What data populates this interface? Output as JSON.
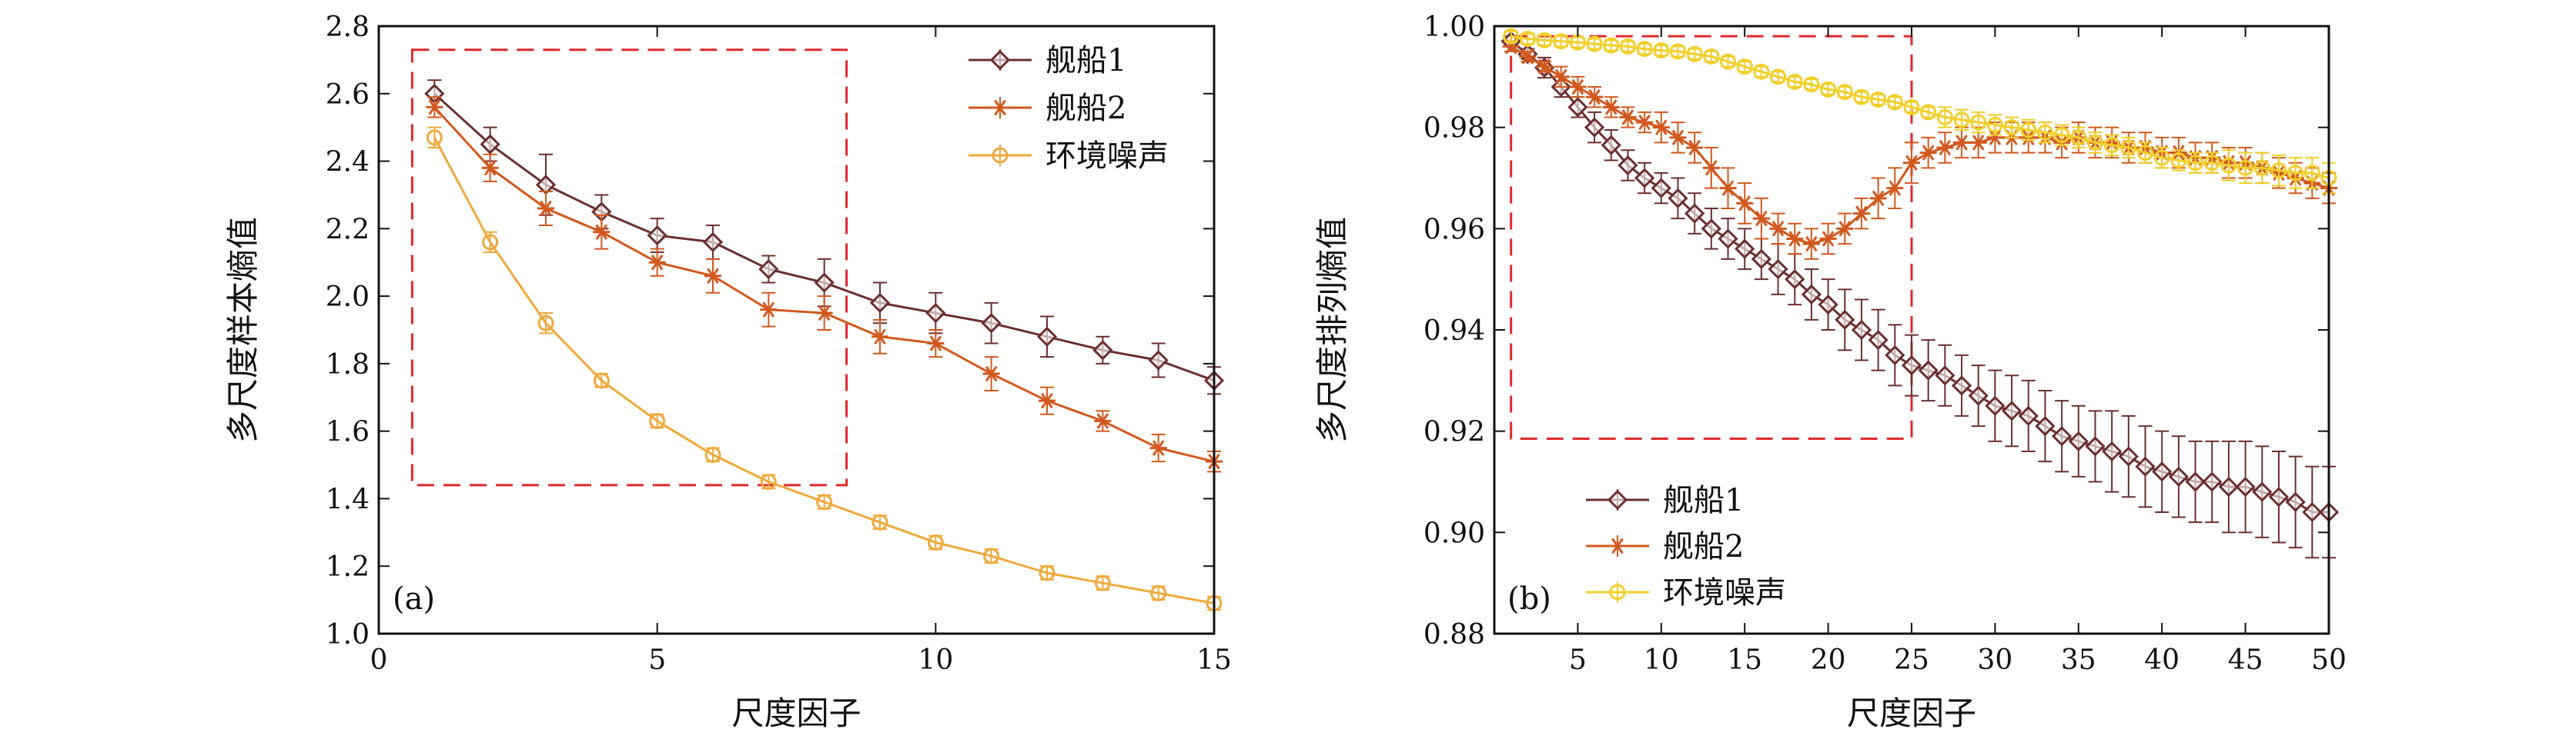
{
  "chart_data": [
    {
      "type": "line",
      "panel_label": "(a)",
      "xlabel": "尺度因子",
      "ylabel": "多尺度样本熵值",
      "xlim": [
        0,
        15
      ],
      "ylim": [
        1.0,
        2.8
      ],
      "xticks": [
        0,
        5,
        10,
        15
      ],
      "yticks": [
        1.0,
        1.2,
        1.4,
        1.6,
        1.8,
        2.0,
        2.2,
        2.4,
        2.6,
        2.8
      ],
      "x": [
        1,
        2,
        3,
        4,
        5,
        6,
        7,
        8,
        9,
        10,
        11,
        12,
        13,
        14,
        15
      ],
      "highlight_box": {
        "x": [
          0.6,
          8.4
        ],
        "y": [
          1.44,
          2.73
        ]
      },
      "legend_position": "top-right",
      "series": [
        {
          "name": "舰船1",
          "marker": "diamond",
          "color": "#6b2f2f",
          "values": [
            2.6,
            2.45,
            2.33,
            2.25,
            2.18,
            2.16,
            2.08,
            2.04,
            1.98,
            1.95,
            1.92,
            1.88,
            1.84,
            1.81,
            1.75
          ],
          "errors": [
            0.04,
            0.05,
            0.09,
            0.05,
            0.05,
            0.05,
            0.04,
            0.07,
            0.06,
            0.06,
            0.06,
            0.06,
            0.04,
            0.05,
            0.04
          ]
        },
        {
          "name": "舰船2",
          "marker": "star",
          "color": "#d2581e",
          "values": [
            2.56,
            2.38,
            2.26,
            2.19,
            2.1,
            2.06,
            1.96,
            1.95,
            1.88,
            1.86,
            1.77,
            1.69,
            1.63,
            1.55,
            1.51
          ],
          "errors": [
            0.03,
            0.04,
            0.05,
            0.05,
            0.04,
            0.05,
            0.05,
            0.05,
            0.05,
            0.04,
            0.05,
            0.04,
            0.03,
            0.04,
            0.03
          ]
        },
        {
          "name": "环境噪声",
          "marker": "circle",
          "color": "#f0a93a",
          "values": [
            2.47,
            2.16,
            1.92,
            1.75,
            1.63,
            1.53,
            1.45,
            1.39,
            1.33,
            1.27,
            1.23,
            1.18,
            1.15,
            1.12,
            1.09
          ],
          "errors": [
            0.03,
            0.03,
            0.03,
            0.02,
            0.02,
            0.02,
            0.02,
            0.02,
            0.02,
            0.02,
            0.02,
            0.02,
            0.02,
            0.02,
            0.02
          ]
        }
      ]
    },
    {
      "type": "line",
      "panel_label": "(b)",
      "xlabel": "尺度因子",
      "ylabel": "多尺度排列熵值",
      "xlim": [
        0,
        50
      ],
      "ylim": [
        0.88,
        1.0
      ],
      "xticks": [
        5,
        10,
        15,
        20,
        25,
        30,
        35,
        40,
        45,
        50
      ],
      "yticks": [
        0.88,
        0.9,
        0.92,
        0.94,
        0.96,
        0.98,
        1.0
      ],
      "x": [
        1,
        2,
        3,
        4,
        5,
        6,
        7,
        8,
        9,
        10,
        11,
        12,
        13,
        14,
        15,
        16,
        17,
        18,
        19,
        20,
        21,
        22,
        23,
        24,
        25,
        26,
        27,
        28,
        29,
        30,
        31,
        32,
        33,
        34,
        35,
        36,
        37,
        38,
        39,
        40,
        41,
        42,
        43,
        44,
        45,
        46,
        47,
        48,
        49,
        50
      ],
      "highlight_box": {
        "x": [
          1.0,
          25.0
        ],
        "y": [
          0.9185,
          0.998
        ]
      },
      "legend_position": "bottom-left",
      "series": [
        {
          "name": "舰船1",
          "marker": "diamond",
          "color": "#6b2f2f",
          "values": [
            0.997,
            0.9945,
            0.9918,
            0.988,
            0.984,
            0.98,
            0.9765,
            0.9725,
            0.97,
            0.968,
            0.966,
            0.963,
            0.96,
            0.958,
            0.956,
            0.954,
            0.952,
            0.95,
            0.947,
            0.945,
            0.942,
            0.94,
            0.938,
            0.935,
            0.933,
            0.932,
            0.931,
            0.929,
            0.927,
            0.925,
            0.924,
            0.923,
            0.921,
            0.919,
            0.918,
            0.917,
            0.916,
            0.915,
            0.913,
            0.912,
            0.911,
            0.91,
            0.91,
            0.909,
            0.909,
            0.908,
            0.907,
            0.906,
            0.904,
            0.904
          ],
          "errors": [
            0.001,
            0.001,
            0.002,
            0.002,
            0.002,
            0.003,
            0.003,
            0.003,
            0.003,
            0.003,
            0.004,
            0.004,
            0.004,
            0.004,
            0.004,
            0.004,
            0.005,
            0.005,
            0.005,
            0.005,
            0.006,
            0.006,
            0.006,
            0.006,
            0.006,
            0.006,
            0.006,
            0.006,
            0.006,
            0.007,
            0.007,
            0.007,
            0.007,
            0.007,
            0.007,
            0.007,
            0.008,
            0.008,
            0.008,
            0.008,
            0.008,
            0.008,
            0.008,
            0.009,
            0.009,
            0.009,
            0.009,
            0.009,
            0.009,
            0.009
          ]
        },
        {
          "name": "舰船2",
          "marker": "star",
          "color": "#d2581e",
          "values": [
            0.996,
            0.994,
            0.992,
            0.99,
            0.988,
            0.986,
            0.984,
            0.982,
            0.981,
            0.98,
            0.978,
            0.976,
            0.972,
            0.968,
            0.965,
            0.962,
            0.96,
            0.958,
            0.957,
            0.958,
            0.96,
            0.963,
            0.966,
            0.968,
            0.973,
            0.975,
            0.976,
            0.977,
            0.977,
            0.978,
            0.978,
            0.978,
            0.978,
            0.977,
            0.978,
            0.977,
            0.977,
            0.976,
            0.976,
            0.975,
            0.975,
            0.974,
            0.974,
            0.973,
            0.973,
            0.972,
            0.971,
            0.97,
            0.969,
            0.968
          ],
          "errors": [
            0.001,
            0.001,
            0.001,
            0.002,
            0.002,
            0.002,
            0.002,
            0.002,
            0.002,
            0.003,
            0.003,
            0.003,
            0.004,
            0.004,
            0.004,
            0.004,
            0.003,
            0.003,
            0.003,
            0.003,
            0.003,
            0.003,
            0.004,
            0.004,
            0.004,
            0.003,
            0.003,
            0.003,
            0.003,
            0.003,
            0.003,
            0.003,
            0.003,
            0.003,
            0.003,
            0.003,
            0.003,
            0.003,
            0.003,
            0.003,
            0.003,
            0.003,
            0.003,
            0.003,
            0.003,
            0.003,
            0.003,
            0.003,
            0.003,
            0.003
          ]
        },
        {
          "name": "环境噪声",
          "marker": "circle",
          "color": "#f2cf2a",
          "values": [
            0.998,
            0.9975,
            0.9972,
            0.997,
            0.9968,
            0.9965,
            0.9962,
            0.996,
            0.9955,
            0.9952,
            0.995,
            0.9945,
            0.994,
            0.993,
            0.992,
            0.991,
            0.99,
            0.989,
            0.9885,
            0.9875,
            0.987,
            0.986,
            0.9855,
            0.985,
            0.984,
            0.983,
            0.982,
            0.9815,
            0.981,
            0.9805,
            0.98,
            0.9795,
            0.979,
            0.9785,
            0.978,
            0.977,
            0.9765,
            0.976,
            0.975,
            0.974,
            0.9735,
            0.973,
            0.973,
            0.9725,
            0.972,
            0.972,
            0.9715,
            0.971,
            0.971,
            0.97
          ],
          "errors": [
            0.001,
            0.001,
            0.001,
            0.001,
            0.001,
            0.001,
            0.001,
            0.001,
            0.001,
            0.001,
            0.001,
            0.001,
            0.001,
            0.001,
            0.001,
            0.001,
            0.001,
            0.001,
            0.001,
            0.001,
            0.001,
            0.001,
            0.001,
            0.001,
            0.001,
            0.001,
            0.002,
            0.002,
            0.002,
            0.002,
            0.002,
            0.002,
            0.002,
            0.002,
            0.002,
            0.002,
            0.002,
            0.002,
            0.002,
            0.002,
            0.002,
            0.002,
            0.002,
            0.003,
            0.003,
            0.003,
            0.003,
            0.003,
            0.003,
            0.003
          ]
        }
      ]
    }
  ]
}
